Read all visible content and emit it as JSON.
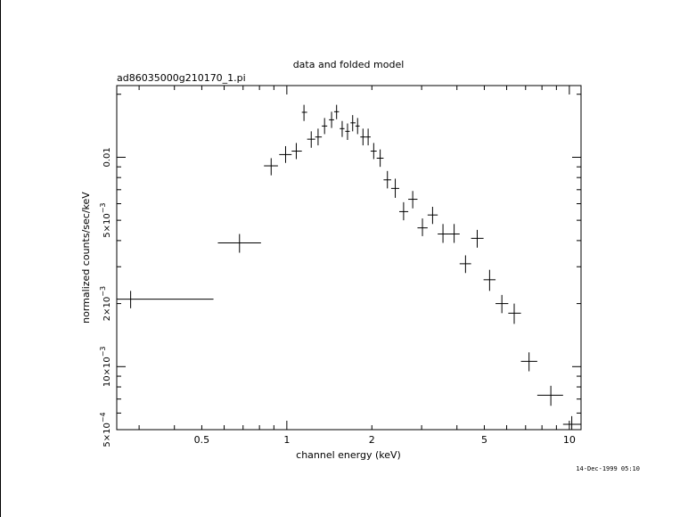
{
  "chart_data": {
    "type": "scatter",
    "title": "data and folded model",
    "subtitle": "ad86035000g210170_1.pi",
    "xlabel": "channel energy (keV)",
    "ylabel": "normalized counts/sec/keV",
    "xscale": "log",
    "yscale": "log",
    "xlim": [
      0.25,
      11
    ],
    "ylim": [
      0.0005,
      0.022
    ],
    "x_ticks": [
      {
        "value": 0.5,
        "label": "0.5"
      },
      {
        "value": 1,
        "label": "1"
      },
      {
        "value": 2,
        "label": "2"
      },
      {
        "value": 5,
        "label": "5"
      },
      {
        "value": 10,
        "label": "10"
      }
    ],
    "y_ticks": [
      {
        "value": 0.0005,
        "mant": "5",
        "exp": "−4"
      },
      {
        "value": 0.001,
        "mant": "10",
        "exp": "−3"
      },
      {
        "value": 0.002,
        "mant": "2",
        "exp": "−3"
      },
      {
        "value": 0.005,
        "mant": "5",
        "exp": "−3"
      },
      {
        "value": 0.01,
        "mant": "0.01",
        "exp": ""
      }
    ],
    "points": [
      {
        "x": 0.28,
        "xlo": 0.25,
        "xhi": 0.55,
        "y": 0.0021,
        "ylo": 0.0019,
        "yhi": 0.0023
      },
      {
        "x": 0.68,
        "xlo": 0.57,
        "xhi": 0.81,
        "y": 0.0039,
        "ylo": 0.0035,
        "yhi": 0.0043
      },
      {
        "x": 0.88,
        "xlo": 0.83,
        "xhi": 0.93,
        "y": 0.0091,
        "ylo": 0.0082,
        "yhi": 0.0099
      },
      {
        "x": 0.99,
        "xlo": 0.94,
        "xhi": 1.04,
        "y": 0.0103,
        "ylo": 0.0094,
        "yhi": 0.0113
      },
      {
        "x": 1.08,
        "xlo": 1.04,
        "xhi": 1.13,
        "y": 0.0107,
        "ylo": 0.0098,
        "yhi": 0.0117
      },
      {
        "x": 1.15,
        "xlo": 1.13,
        "xhi": 1.18,
        "y": 0.0164,
        "ylo": 0.0149,
        "yhi": 0.0178
      },
      {
        "x": 1.22,
        "xlo": 1.18,
        "xhi": 1.26,
        "y": 0.0122,
        "ylo": 0.0111,
        "yhi": 0.0133
      },
      {
        "x": 1.29,
        "xlo": 1.26,
        "xhi": 1.33,
        "y": 0.0125,
        "ylo": 0.0114,
        "yhi": 0.0137
      },
      {
        "x": 1.36,
        "xlo": 1.33,
        "xhi": 1.39,
        "y": 0.0141,
        "ylo": 0.0129,
        "yhi": 0.0154
      },
      {
        "x": 1.44,
        "xlo": 1.41,
        "xhi": 1.47,
        "y": 0.0151,
        "ylo": 0.0138,
        "yhi": 0.0165
      },
      {
        "x": 1.5,
        "xlo": 1.47,
        "xhi": 1.53,
        "y": 0.0165,
        "ylo": 0.0152,
        "yhi": 0.0178
      },
      {
        "x": 1.57,
        "xlo": 1.54,
        "xhi": 1.6,
        "y": 0.0137,
        "ylo": 0.0125,
        "yhi": 0.0149
      },
      {
        "x": 1.64,
        "xlo": 1.61,
        "xhi": 1.67,
        "y": 0.0133,
        "ylo": 0.0121,
        "yhi": 0.0145
      },
      {
        "x": 1.71,
        "xlo": 1.68,
        "xhi": 1.75,
        "y": 0.0146,
        "ylo": 0.0133,
        "yhi": 0.0159
      },
      {
        "x": 1.78,
        "xlo": 1.75,
        "xhi": 1.81,
        "y": 0.0141,
        "ylo": 0.0129,
        "yhi": 0.0154
      },
      {
        "x": 1.86,
        "xlo": 1.82,
        "xhi": 1.9,
        "y": 0.0125,
        "ylo": 0.0114,
        "yhi": 0.0137
      },
      {
        "x": 1.94,
        "xlo": 1.9,
        "xhi": 1.98,
        "y": 0.0125,
        "ylo": 0.0114,
        "yhi": 0.0137
      },
      {
        "x": 2.03,
        "xlo": 1.98,
        "xhi": 2.08,
        "y": 0.0107,
        "ylo": 0.0098,
        "yhi": 0.0117
      },
      {
        "x": 2.14,
        "xlo": 2.08,
        "xhi": 2.2,
        "y": 0.0099,
        "ylo": 0.009,
        "yhi": 0.0109
      },
      {
        "x": 2.27,
        "xlo": 2.2,
        "xhi": 2.34,
        "y": 0.0078,
        "ylo": 0.0071,
        "yhi": 0.0086
      },
      {
        "x": 2.42,
        "xlo": 2.34,
        "xhi": 2.5,
        "y": 0.0071,
        "ylo": 0.0064,
        "yhi": 0.0079
      },
      {
        "x": 2.59,
        "xlo": 2.5,
        "xhi": 2.69,
        "y": 0.0055,
        "ylo": 0.005,
        "yhi": 0.0061
      },
      {
        "x": 2.79,
        "xlo": 2.69,
        "xhi": 2.9,
        "y": 0.0063,
        "ylo": 0.0057,
        "yhi": 0.0069
      },
      {
        "x": 3.02,
        "xlo": 2.9,
        "xhi": 3.15,
        "y": 0.0046,
        "ylo": 0.0042,
        "yhi": 0.0051
      },
      {
        "x": 3.28,
        "xlo": 3.15,
        "xhi": 3.42,
        "y": 0.0053,
        "ylo": 0.0048,
        "yhi": 0.0058
      },
      {
        "x": 3.57,
        "xlo": 3.42,
        "xhi": 3.74,
        "y": 0.0043,
        "ylo": 0.0039,
        "yhi": 0.0048
      },
      {
        "x": 3.91,
        "xlo": 3.74,
        "xhi": 4.09,
        "y": 0.0043,
        "ylo": 0.0039,
        "yhi": 0.0048
      },
      {
        "x": 4.29,
        "xlo": 4.09,
        "xhi": 4.49,
        "y": 0.0031,
        "ylo": 0.0028,
        "yhi": 0.0034
      },
      {
        "x": 4.72,
        "xlo": 4.49,
        "xhi": 4.97,
        "y": 0.0041,
        "ylo": 0.0037,
        "yhi": 0.0045
      },
      {
        "x": 5.22,
        "xlo": 4.97,
        "xhi": 5.48,
        "y": 0.0026,
        "ylo": 0.0023,
        "yhi": 0.0029
      },
      {
        "x": 5.77,
        "xlo": 5.48,
        "xhi": 6.08,
        "y": 0.002,
        "ylo": 0.0018,
        "yhi": 0.0022
      },
      {
        "x": 6.38,
        "xlo": 6.08,
        "xhi": 6.74,
        "y": 0.0018,
        "ylo": 0.0016,
        "yhi": 0.002
      },
      {
        "x": 7.2,
        "xlo": 6.74,
        "xhi": 7.7,
        "y": 0.00106,
        "ylo": 0.00095,
        "yhi": 0.00117
      },
      {
        "x": 8.6,
        "xlo": 7.7,
        "xhi": 9.5,
        "y": 0.00073,
        "ylo": 0.00065,
        "yhi": 0.00081
      },
      {
        "x": 10.2,
        "xlo": 9.5,
        "xhi": 11.0,
        "y": 0.00053,
        "ylo": 0.00048,
        "yhi": 0.00058
      }
    ],
    "grid": false,
    "legend": "none"
  },
  "timestamp": "14-Dec-1999 05:10"
}
